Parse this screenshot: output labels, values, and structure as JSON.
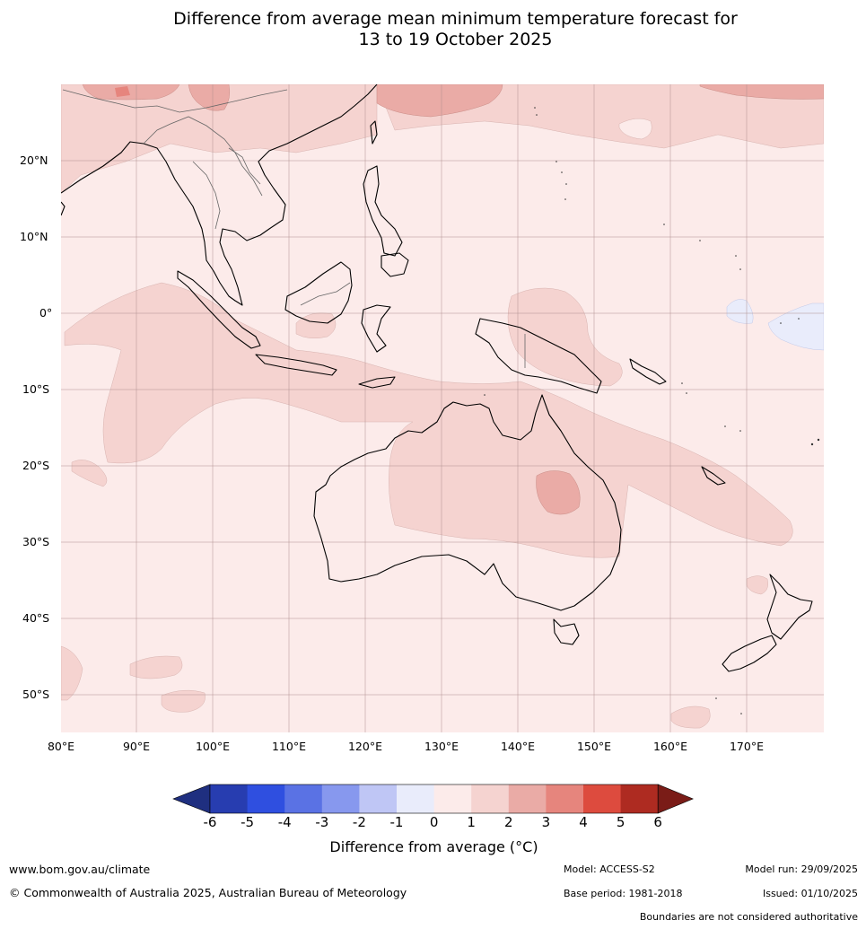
{
  "title_line1": "Difference from average mean minimum temperature forecast for",
  "title_line2": "13 to 19 October 2025",
  "lat_labels": [
    "20°N",
    "10°N",
    "0°",
    "10°S",
    "20°S",
    "30°S",
    "40°S",
    "50°S"
  ],
  "lon_labels": [
    "80°E",
    "90°E",
    "100°E",
    "110°E",
    "120°E",
    "130°E",
    "140°E",
    "150°E",
    "160°E",
    "170°E"
  ],
  "colorbar": {
    "ticks": [
      "-6",
      "-5",
      "-4",
      "-3",
      "-2",
      "-1",
      "0",
      "1",
      "2",
      "3",
      "4",
      "5",
      "6"
    ],
    "colors": [
      "#1f2f80",
      "#273db0",
      "#2f4fe0",
      "#5a72e4",
      "#8798ee",
      "#bfc6f5",
      "#e9ecfb",
      "#fcebea",
      "#f5d3d0",
      "#eaaba6",
      "#e6857d",
      "#dd4b3e",
      "#ae2b21",
      "#7a1c17"
    ],
    "label": "Difference from average (°C)"
  },
  "footer": {
    "website": "www.bom.gov.au/climate",
    "copyright": "© Commonwealth of Australia 2025, Australian Bureau of Meteorology",
    "model": "Model: ACCESS-S2",
    "base_period": "Base period: 1981-2018",
    "model_run": "Model run: 29/09/2025",
    "issued": "Issued: 01/10/2025",
    "disclaimer": "Boundaries are not considered authoritative"
  }
}
